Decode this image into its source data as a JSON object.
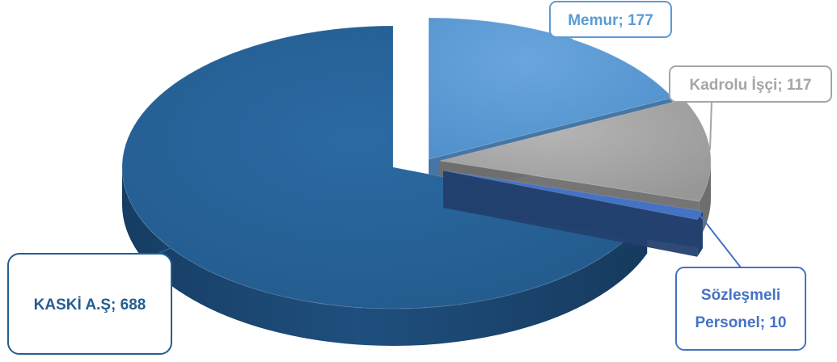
{
  "chart_data": {
    "type": "pie",
    "style": "3d-exploded",
    "title": "",
    "slices": [
      {
        "label": "Memur",
        "value": 177,
        "display": "Memur; 177",
        "color": "#5b9bd5"
      },
      {
        "label": "Kadrolu İşçi",
        "value": 117,
        "display": "Kadrolu İşçi; 117",
        "color": "#a5a5a5"
      },
      {
        "label": "Sözleşmeli Personel",
        "value": 10,
        "display_lines": [
          "Sözleşmeli",
          "Personel; 10"
        ],
        "color": "#4472c4"
      },
      {
        "label": "KASKİ A.Ş",
        "value": 688,
        "display": "KASKİ A.Ş; 688",
        "color": "#255e91"
      }
    ]
  }
}
